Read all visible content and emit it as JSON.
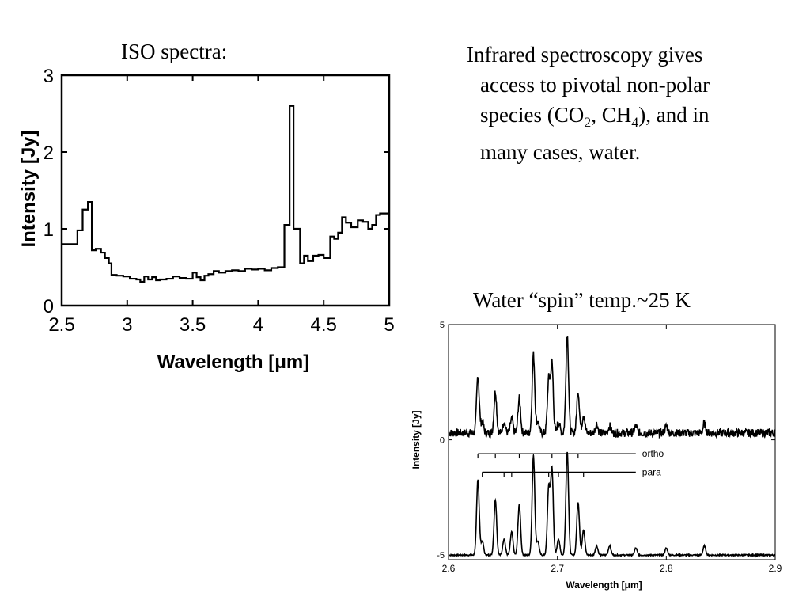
{
  "left_title": "ISO spectra:",
  "description": {
    "line1": "Infrared spectroscopy gives",
    "line2": "access to pivotal non-polar",
    "line3_pre": "species (CO",
    "line3_sub1": "2",
    "line3_mid": ", CH",
    "line3_sub2": "4",
    "line3_post": "), and in",
    "line4": "many cases, water."
  },
  "right_title": "Water “spin” temp.~25 K",
  "chart_data": [
    {
      "type": "line",
      "step": true,
      "xlabel": "Wavelength [μm]",
      "ylabel": "Intensity [Jy]",
      "xlim": [
        2.5,
        5
      ],
      "ylim": [
        0,
        3
      ],
      "xticks": [
        2.5,
        3,
        3.5,
        4,
        4.5,
        5
      ],
      "xtick_labels": [
        "2.5",
        "3",
        "3.5",
        "4",
        "4.5",
        "5"
      ],
      "yticks": [
        0,
        1,
        2,
        3
      ],
      "ytick_labels": [
        "0",
        "1",
        "2",
        "3"
      ],
      "x": [
        2.5,
        2.62,
        2.66,
        2.7,
        2.73,
        2.76,
        2.8,
        2.83,
        2.86,
        2.88,
        2.92,
        2.97,
        3.02,
        3.07,
        3.1,
        3.13,
        3.16,
        3.19,
        3.22,
        3.25,
        3.3,
        3.35,
        3.4,
        3.45,
        3.5,
        3.53,
        3.56,
        3.59,
        3.62,
        3.66,
        3.7,
        3.75,
        3.8,
        3.85,
        3.9,
        3.95,
        4.0,
        4.05,
        4.1,
        4.15,
        4.2,
        4.24,
        4.27,
        4.29,
        4.32,
        4.35,
        4.38,
        4.42,
        4.46,
        4.5,
        4.55,
        4.58,
        4.61,
        4.64,
        4.67,
        4.71,
        4.76,
        4.8,
        4.84,
        4.87,
        4.9,
        4.93,
        4.96,
        5.0
      ],
      "y": [
        0.8,
        0.98,
        1.25,
        1.35,
        0.72,
        0.74,
        0.69,
        0.62,
        0.55,
        0.4,
        0.39,
        0.38,
        0.35,
        0.34,
        0.31,
        0.38,
        0.34,
        0.37,
        0.33,
        0.34,
        0.35,
        0.38,
        0.36,
        0.35,
        0.43,
        0.37,
        0.33,
        0.39,
        0.41,
        0.45,
        0.43,
        0.45,
        0.46,
        0.45,
        0.48,
        0.47,
        0.48,
        0.46,
        0.49,
        0.5,
        1.05,
        2.6,
        1.0,
        1.0,
        0.55,
        0.65,
        0.58,
        0.65,
        0.66,
        0.62,
        0.9,
        0.87,
        0.95,
        1.15,
        1.08,
        1.02,
        1.11,
        1.09,
        1.0,
        1.05,
        1.18,
        1.2,
        1.2,
        1.2
      ],
      "grid": false
    },
    {
      "type": "line",
      "title": "Water “spin” temp.~25 K",
      "xlabel": "Wavelength [μm]",
      "ylabel": "Intensity [Jy]",
      "xlim": [
        2.6,
        2.9
      ],
      "ylim": [
        -5.2,
        5
      ],
      "xticks": [
        2.6,
        2.7,
        2.8,
        2.9
      ],
      "xtick_labels": [
        "2.6",
        "2.7",
        "2.8",
        "2.9"
      ],
      "yticks": [
        -5,
        0,
        5
      ],
      "ytick_labels": [
        "-5",
        "0",
        "5"
      ],
      "observed_baseline": 0.3,
      "model_baseline": -5.0,
      "lines": [
        {
          "x": 2.627,
          "obs": 2.5,
          "model": 3.3
        },
        {
          "x": 2.631,
          "obs": 0.5,
          "model": 0.6
        },
        {
          "x": 2.643,
          "obs": 1.8,
          "model": 2.4
        },
        {
          "x": 2.651,
          "obs": 0.5,
          "model": 0.7
        },
        {
          "x": 2.658,
          "obs": 0.6,
          "model": 1.0
        },
        {
          "x": 2.665,
          "obs": 1.5,
          "model": 2.2
        },
        {
          "x": 2.678,
          "obs": 3.4,
          "model": 4.3
        },
        {
          "x": 2.682,
          "obs": 0.5,
          "model": 0.6
        },
        {
          "x": 2.692,
          "obs": 2.3,
          "model": 2.9
        },
        {
          "x": 2.695,
          "obs": 3.0,
          "model": 3.7
        },
        {
          "x": 2.701,
          "obs": 0.5,
          "model": 0.7
        },
        {
          "x": 2.709,
          "obs": 4.3,
          "model": 4.5
        },
        {
          "x": 2.719,
          "obs": 1.8,
          "model": 2.3
        },
        {
          "x": 2.724,
          "obs": 0.8,
          "model": 1.1
        },
        {
          "x": 2.736,
          "obs": 0.4,
          "model": 0.4
        },
        {
          "x": 2.748,
          "obs": 0.3,
          "model": 0.4
        },
        {
          "x": 2.772,
          "obs": 0.3,
          "model": 0.3
        },
        {
          "x": 2.8,
          "obs": 0.3,
          "model": 0.3
        },
        {
          "x": 2.835,
          "obs": 0.4,
          "model": 0.4
        }
      ],
      "ortho_marks": [
        2.627,
        2.643,
        2.665,
        2.678,
        2.695,
        2.709,
        2.719
      ],
      "para_marks": [
        2.631,
        2.651,
        2.658,
        2.692,
        2.701,
        2.724
      ],
      "legend": [
        "ortho",
        "para"
      ],
      "grid": false
    }
  ]
}
